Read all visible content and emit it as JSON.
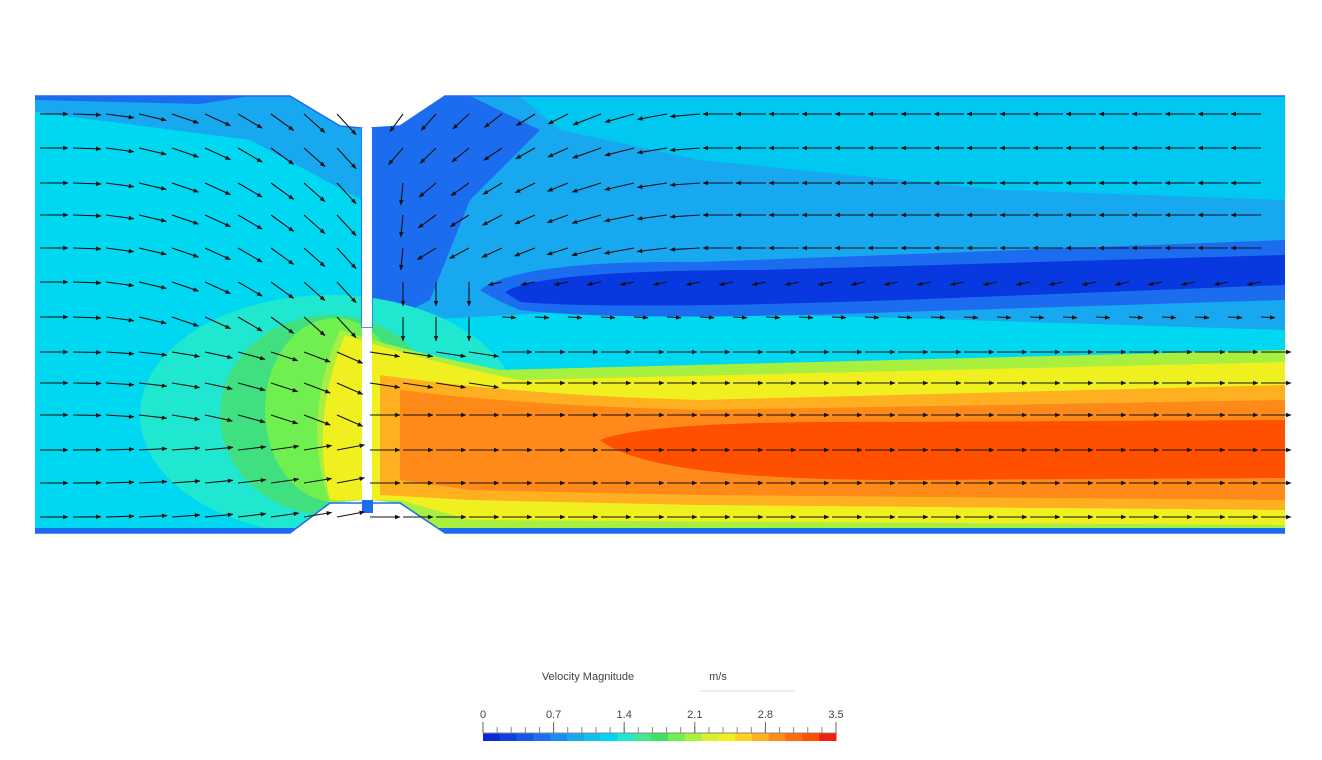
{
  "colorbar": {
    "title": "Velocity Magnitude",
    "unit": "m/s",
    "ticks": [
      0,
      0.7,
      1.4,
      2.1,
      2.8,
      3.5
    ]
  }
}
